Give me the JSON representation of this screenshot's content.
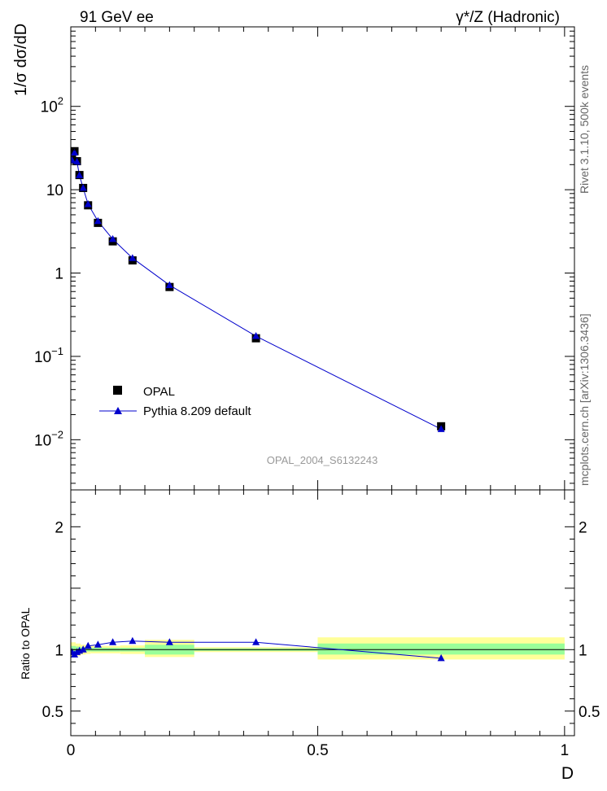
{
  "header": {
    "left": "91 GeV ee",
    "right": "γ*/Z (Hadronic)"
  },
  "side_labels": {
    "rivet": "Rivet 3.1.10,  500k events",
    "mcplots": "mcplots.cern.ch [arXiv:1306.3436]"
  },
  "chart_data": [
    {
      "type": "scatter",
      "panel": "main",
      "title": "",
      "analysis_id": "OPAL_2004_S6132243",
      "xlabel": "D",
      "ylabel": "1/σ dσ/dD",
      "ylog": true,
      "xlim": [
        0,
        1.02
      ],
      "ylim": [
        0.0025,
        900
      ],
      "yticks": [
        {
          "value": 0.01,
          "base": "10",
          "exp": "−2"
        },
        {
          "value": 0.1,
          "base": "10",
          "exp": "−1"
        },
        {
          "value": 1,
          "base": "1",
          "exp": ""
        },
        {
          "value": 10,
          "base": "10",
          "exp": ""
        },
        {
          "value": 100,
          "base": "10",
          "exp": "2"
        }
      ],
      "legend_position": "bottom-left",
      "series": [
        {
          "name": "OPAL",
          "marker": "square",
          "color": "#000000",
          "x": [
            0.0025,
            0.0075,
            0.0125,
            0.0175,
            0.025,
            0.035,
            0.055,
            0.085,
            0.125,
            0.2,
            0.375,
            0.75
          ],
          "y": [
            23,
            29,
            22,
            15,
            10.5,
            6.5,
            4.0,
            2.4,
            1.42,
            0.68,
            0.165,
            0.0145
          ]
        },
        {
          "name": "Pythia 8.209 default",
          "marker": "triangle",
          "color": "#0000cc",
          "x": [
            0.0025,
            0.0075,
            0.0125,
            0.0175,
            0.025,
            0.035,
            0.055,
            0.085,
            0.125,
            0.2,
            0.375,
            0.75
          ],
          "y": [
            22.5,
            27.8,
            21.6,
            14.9,
            10.5,
            6.7,
            4.2,
            2.55,
            1.51,
            0.715,
            0.175,
            0.0134
          ]
        }
      ]
    },
    {
      "type": "line",
      "panel": "ratio",
      "xlabel": "D",
      "ylabel": "Ratio to OPAL",
      "xlim": [
        0,
        1.02
      ],
      "ylim": [
        0.3,
        2.3
      ],
      "xticks": [
        {
          "value": 0,
          "label": "0"
        },
        {
          "value": 0.5,
          "label": "0.5"
        },
        {
          "value": 1,
          "label": "1"
        }
      ],
      "yticks": [
        {
          "value": 0.5,
          "label": "0.5"
        },
        {
          "value": 1,
          "label": "1"
        },
        {
          "value": 2,
          "label": "2"
        }
      ],
      "bands": {
        "yellow_color": "#ffff99",
        "green_color": "#99ff99",
        "bins": [
          {
            "x0": 0.0,
            "x1": 0.005,
            "yellow": [
              0.94,
              1.06
            ],
            "green": [
              0.97,
              1.03
            ]
          },
          {
            "x0": 0.005,
            "x1": 0.01,
            "yellow": [
              0.94,
              1.06
            ],
            "green": [
              0.97,
              1.03
            ]
          },
          {
            "x0": 0.01,
            "x1": 0.015,
            "yellow": [
              0.95,
              1.05
            ],
            "green": [
              0.975,
              1.025
            ]
          },
          {
            "x0": 0.015,
            "x1": 0.02,
            "yellow": [
              0.95,
              1.05
            ],
            "green": [
              0.975,
              1.025
            ]
          },
          {
            "x0": 0.02,
            "x1": 0.03,
            "yellow": [
              0.96,
              1.04
            ],
            "green": [
              0.98,
              1.02
            ]
          },
          {
            "x0": 0.03,
            "x1": 0.04,
            "yellow": [
              0.965,
              1.035
            ],
            "green": [
              0.985,
              1.015
            ]
          },
          {
            "x0": 0.04,
            "x1": 0.07,
            "yellow": [
              0.97,
              1.03
            ],
            "green": [
              0.985,
              1.015
            ]
          },
          {
            "x0": 0.07,
            "x1": 0.1,
            "yellow": [
              0.97,
              1.03
            ],
            "green": [
              0.985,
              1.015
            ]
          },
          {
            "x0": 0.1,
            "x1": 0.15,
            "yellow": [
              0.965,
              1.035
            ],
            "green": [
              0.985,
              1.015
            ]
          },
          {
            "x0": 0.15,
            "x1": 0.25,
            "yellow": [
              0.94,
              1.08
            ],
            "green": [
              0.96,
              1.04
            ]
          },
          {
            "x0": 0.25,
            "x1": 0.5,
            "yellow": [
              0.98,
              1.02
            ],
            "green": [
              0.99,
              1.01
            ]
          },
          {
            "x0": 0.5,
            "x1": 1.0,
            "yellow": [
              0.92,
              1.1
            ],
            "green": [
              0.96,
              1.05
            ]
          }
        ]
      },
      "series": [
        {
          "name": "Pythia 8.209 default",
          "marker": "triangle",
          "color": "#0000cc",
          "x": [
            0.0025,
            0.0075,
            0.0125,
            0.0175,
            0.025,
            0.035,
            0.055,
            0.085,
            0.125,
            0.2,
            0.375,
            0.75
          ],
          "y": [
            0.98,
            0.96,
            0.98,
            0.99,
            1.0,
            1.03,
            1.04,
            1.06,
            1.07,
            1.06,
            1.06,
            0.93
          ]
        }
      ]
    }
  ]
}
